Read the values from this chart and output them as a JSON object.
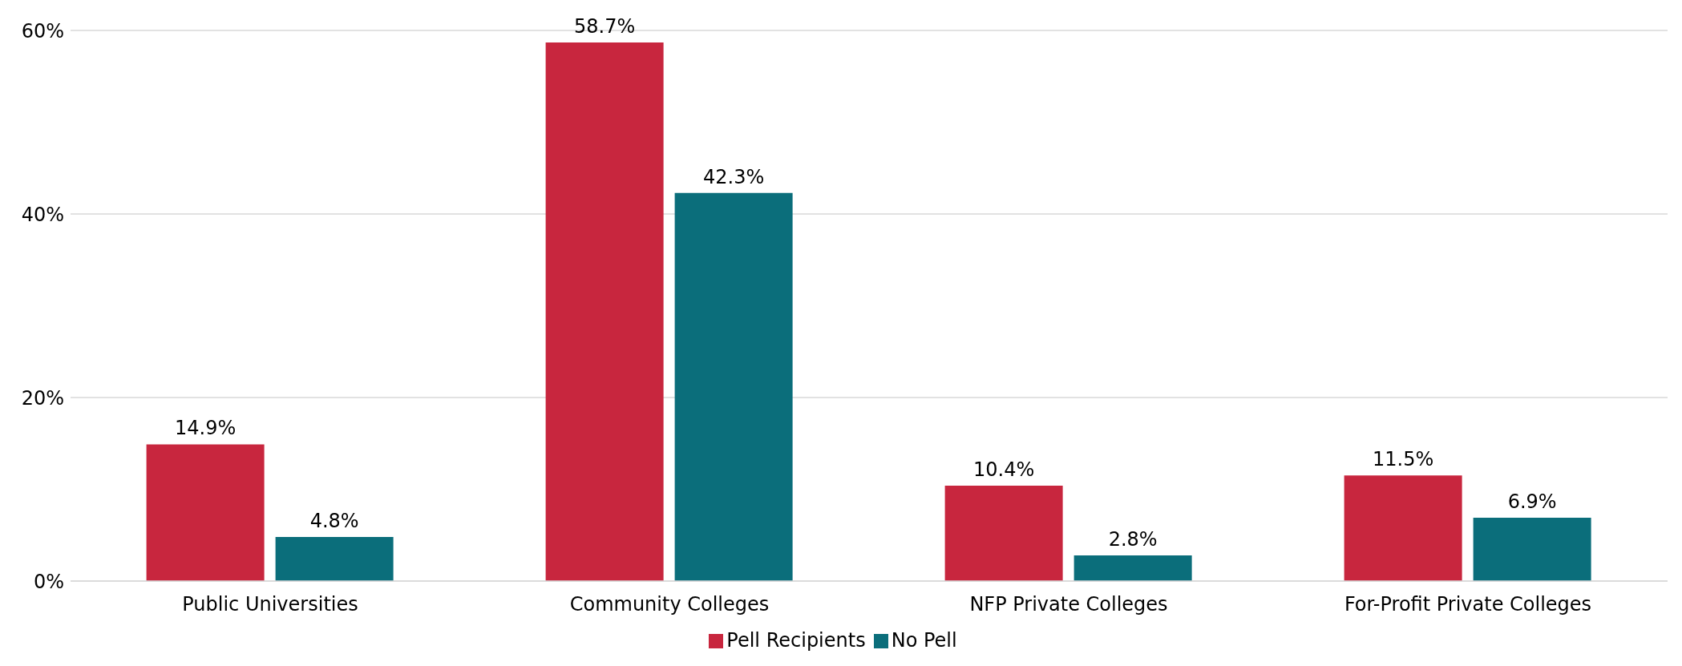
{
  "chart_data": {
    "type": "bar",
    "categories": [
      "Public Universities",
      "Community Colleges",
      "NFP Private Colleges",
      "For-Profit Private Colleges"
    ],
    "series": [
      {
        "name": "Pell Recipients",
        "color": "#c8263e",
        "values": [
          14.9,
          58.7,
          10.4,
          11.5
        ],
        "value_labels": [
          "14.9%",
          "58.7%",
          "10.4%",
          "11.5%"
        ]
      },
      {
        "name": "No Pell",
        "color": "#0b6e7b",
        "values": [
          4.8,
          42.3,
          2.8,
          6.9
        ],
        "value_labels": [
          "4.8%",
          "42.3%",
          "2.8%",
          "6.9%"
        ]
      }
    ],
    "ylim": [
      0,
      60
    ],
    "yticks": [
      {
        "value": 0,
        "label": "0%"
      },
      {
        "value": 20,
        "label": "20%"
      },
      {
        "value": 40,
        "label": "40%"
      },
      {
        "value": 60,
        "label": "60%"
      }
    ],
    "grid": "y",
    "legend": "bottom"
  }
}
